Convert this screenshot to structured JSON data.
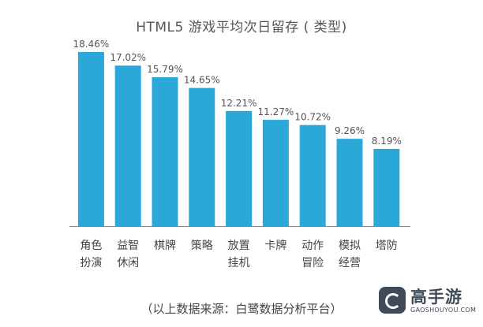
{
  "chart_data": {
    "type": "bar",
    "title": "HTML5 游戏平均次日留存 ( 类型)",
    "categories": [
      "角色\n扮演",
      "益智\n休闲",
      "棋牌",
      "策略",
      "放置\n挂机",
      "卡牌",
      "动作\n冒险",
      "模拟\n经营",
      "塔防"
    ],
    "values": [
      18.46,
      17.02,
      15.79,
      14.65,
      12.21,
      11.27,
      10.72,
      9.26,
      8.19
    ],
    "value_labels": [
      "18.46%",
      "17.02%",
      "15.79%",
      "14.65%",
      "12.21%",
      "11.27%",
      "10.72%",
      "9.26%",
      "8.19%"
    ],
    "ylim": [
      0,
      18.46
    ],
    "xlabel": "",
    "ylabel": "",
    "grid": false,
    "bar_color": "#2aa8d8",
    "axis_color": "#888888"
  },
  "source_text": "（以上数据来源：白鹭数据分析平台）",
  "watermark": {
    "brand": "高手游",
    "site": "GAOSHOUYOU.COM",
    "color": "#3f4b58"
  }
}
